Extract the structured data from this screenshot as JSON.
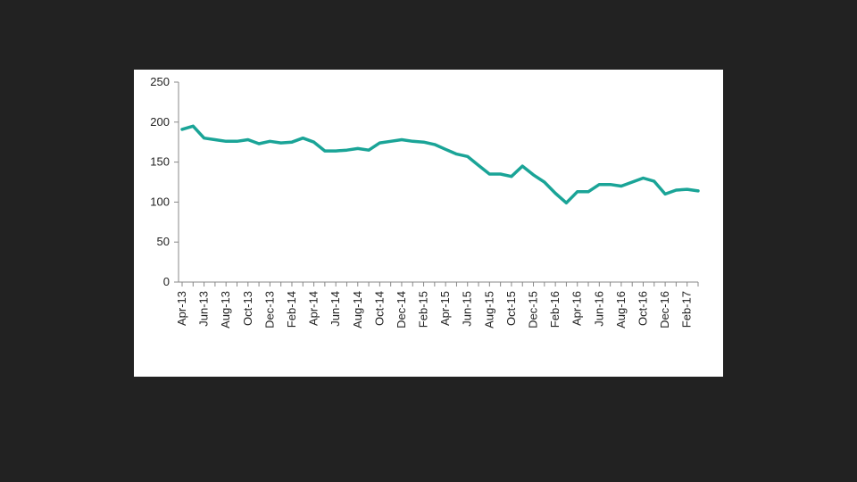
{
  "chart_data": {
    "type": "line",
    "title": "",
    "xlabel": "",
    "ylabel": "",
    "ylim": [
      0,
      250
    ],
    "y_ticks": [
      0,
      50,
      100,
      150,
      200,
      250
    ],
    "grid": false,
    "legend": "none",
    "x_tick_labels": [
      "Apr-13",
      "Jun-13",
      "Aug-13",
      "Oct-13",
      "Dec-13",
      "Feb-14",
      "Apr-14",
      "Jun-14",
      "Aug-14",
      "Oct-14",
      "Dec-14",
      "Feb-15",
      "Apr-15",
      "Jun-15",
      "Aug-15",
      "Oct-15",
      "Dec-15",
      "Feb-16",
      "Apr-16",
      "Jun-16",
      "Aug-16",
      "Oct-16",
      "Dec-16",
      "Feb-17"
    ],
    "categories": [
      "Apr-13",
      "May-13",
      "Jun-13",
      "Jul-13",
      "Aug-13",
      "Sep-13",
      "Oct-13",
      "Nov-13",
      "Dec-13",
      "Jan-14",
      "Feb-14",
      "Mar-14",
      "Apr-14",
      "May-14",
      "Jun-14",
      "Jul-14",
      "Aug-14",
      "Sep-14",
      "Oct-14",
      "Nov-14",
      "Dec-14",
      "Jan-15",
      "Feb-15",
      "Mar-15",
      "Apr-15",
      "May-15",
      "Jun-15",
      "Jul-15",
      "Aug-15",
      "Sep-15",
      "Oct-15",
      "Nov-15",
      "Dec-15",
      "Jan-16",
      "Feb-16",
      "Mar-16",
      "Apr-16",
      "May-16",
      "Jun-16",
      "Jul-16",
      "Aug-16",
      "Sep-16",
      "Oct-16",
      "Nov-16",
      "Dec-16",
      "Jan-17",
      "Feb-17",
      "Mar-17"
    ],
    "series": [
      {
        "values": [
          191,
          195,
          180,
          178,
          176,
          176,
          178,
          173,
          176,
          174,
          175,
          180,
          175,
          164,
          164,
          165,
          167,
          165,
          174,
          176,
          178,
          176,
          175,
          172,
          166,
          160,
          157,
          146,
          135,
          135,
          132,
          145,
          134,
          125,
          111,
          99,
          113,
          113,
          122,
          122,
          120,
          125,
          130,
          126,
          110,
          115,
          116,
          114
        ]
      }
    ],
    "line_color": "#1aa497"
  }
}
